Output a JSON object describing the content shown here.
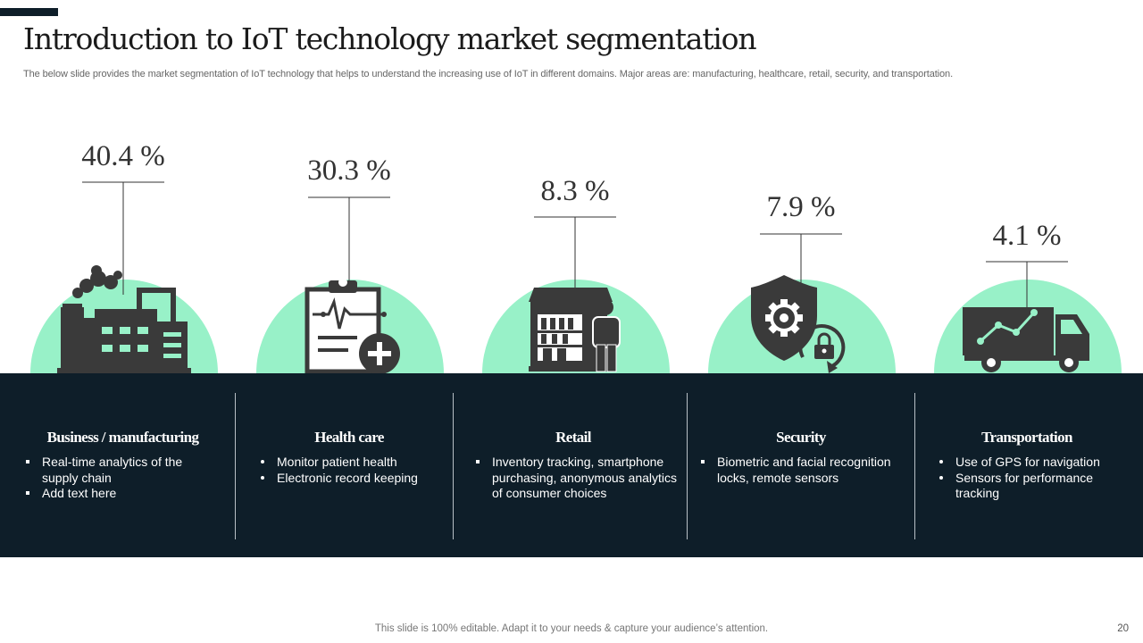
{
  "slide": {
    "title": "Introduction to IoT technology market segmentation",
    "subtitle": "The below slide provides the market segmentation of IoT technology that helps to understand the increasing use of IoT in different domains. Major areas are: manufacturing, healthcare, retail, security, and transportation.",
    "footer": "This slide is 100% editable. Adapt it to your needs & capture your audience’s attention.",
    "page_number": "20"
  },
  "colors": {
    "panel": "#0e1e29",
    "mint": "#98f1c8",
    "icon": "#3a3a3a",
    "text_dark": "#333333"
  },
  "segments": [
    {
      "name": "Business / manufacturing",
      "percent": "40.4 %",
      "share": 40.4,
      "icon": "factory-icon",
      "bullets": [
        "Real-time analytics of the supply chain",
        "Add text here"
      ]
    },
    {
      "name": "Health care",
      "percent": "30.3 %",
      "share": 30.3,
      "icon": "medical-clipboard-icon",
      "bullets": [
        "Monitor patient health",
        "Electronic record keeping"
      ]
    },
    {
      "name": "Retail",
      "percent": "8.3 %",
      "share": 8.3,
      "icon": "retail-store-icon",
      "bullets": [
        "Inventory tracking, smartphone purchasing, anonymous analytics of consumer choices"
      ]
    },
    {
      "name": "Security",
      "percent": "7.9 %",
      "share": 7.9,
      "icon": "security-shield-icon",
      "bullets": [
        "Biometric and facial recognition locks, remote sensors"
      ]
    },
    {
      "name": "Transportation",
      "percent": "4.1 %",
      "share": 4.1,
      "icon": "delivery-truck-icon",
      "bullets": [
        "Use of GPS for navigation",
        "Sensors for performance tracking"
      ]
    }
  ]
}
